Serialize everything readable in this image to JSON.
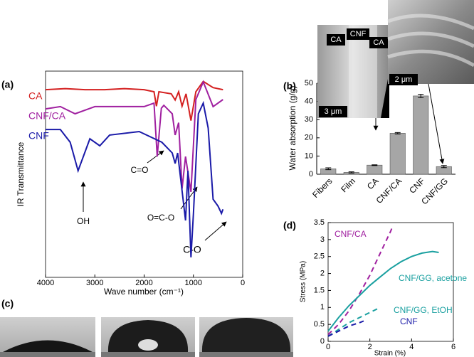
{
  "chart_data": [
    {
      "type": "line",
      "panel_label": "(a)",
      "xlabel": "Wave number (cm⁻¹)",
      "ylabel": "IR Transmittance",
      "xlim": [
        4000,
        0
      ],
      "xticks": [
        4000,
        3000,
        2000,
        1000,
        0
      ],
      "ylim": [
        0,
        100
      ],
      "series": [
        {
          "name": "CA",
          "color": "#d42020",
          "x": [
            4000,
            3600,
            3200,
            2800,
            2400,
            2000,
            1800,
            1750,
            1700,
            1450,
            1370,
            1300,
            1230,
            1150,
            1050,
            950,
            800,
            600,
            400
          ],
          "values": [
            91,
            91.5,
            91,
            91,
            91.5,
            91,
            90,
            83,
            90,
            89,
            86,
            90,
            83,
            89,
            76,
            90,
            95,
            92,
            91
          ]
        },
        {
          "name": "CNF/CA",
          "color": "#a020a0",
          "x": [
            4000,
            3700,
            3400,
            3000,
            2500,
            2000,
            1800,
            1735,
            1650,
            1600,
            1430,
            1370,
            1300,
            1230,
            1160,
            1050,
            950,
            800,
            600,
            400
          ],
          "values": [
            81.7,
            82.8,
            79.3,
            82.8,
            82.8,
            82.8,
            84.5,
            58.6,
            82,
            83.4,
            79.3,
            69,
            75,
            43,
            58.6,
            41.4,
            86.2,
            94.8,
            82.8,
            86.2
          ]
        },
        {
          "name": "CNF",
          "color": "#1a1aa8",
          "x": [
            4000,
            3700,
            3500,
            3340,
            3100,
            2900,
            2700,
            2100,
            1640,
            1430,
            1370,
            1320,
            1160,
            1110,
            1050,
            1000,
            900,
            800,
            700,
            600,
            500,
            430,
            400
          ],
          "values": [
            71.7,
            71.7,
            65.5,
            51.7,
            67.2,
            63.8,
            69,
            70.7,
            65.5,
            60.3,
            55.2,
            60.3,
            27.6,
            51.7,
            9.7,
            31,
            79.3,
            84.5,
            72.4,
            37.9,
            34.5,
            31,
            33
          ]
        }
      ],
      "annotations": [
        "OH",
        "C=O",
        "O=C-O",
        "C-O"
      ]
    },
    {
      "type": "bar",
      "panel_label": "(b)",
      "ylabel": "Water absorption (g/g)",
      "categories": [
        "Fibers",
        "Film",
        "CA",
        "CNF/CA",
        "CNF",
        "CNF/GG"
      ],
      "values": [
        3,
        1,
        5,
        22.5,
        43,
        4.2
      ],
      "errors": [
        0.5,
        0.3,
        0.2,
        0.4,
        0.9,
        0.6
      ],
      "color": "#a6a6a6",
      "ylim": [
        0,
        50
      ],
      "yticks": [
        0,
        10,
        20,
        30,
        40,
        50
      ],
      "inset_labels": [
        "CA",
        "CNF",
        "CA",
        "3 μm",
        "2 μm"
      ]
    },
    {
      "type": "line",
      "panel_label": "(d)",
      "xlabel": "Strain (%)",
      "ylabel": "Stress (MPa)",
      "xlim": [
        0,
        6
      ],
      "xticks": [
        0,
        2,
        4,
        6
      ],
      "ylim": [
        0,
        3.5
      ],
      "yticks": [
        0,
        0.5,
        1,
        1.5,
        2,
        2.5,
        3,
        3.5
      ],
      "series": [
        {
          "name": "CNF/CA",
          "color": "#a020a0",
          "dash": true,
          "x": [
            0,
            0.5,
            1,
            1.5,
            2,
            2.5,
            3,
            3.1
          ],
          "values": [
            0.2,
            0.5,
            0.9,
            1.4,
            1.95,
            2.6,
            3.25,
            3.4
          ]
        },
        {
          "name": "CNF/GG, acetone",
          "color": "#1aa0a0",
          "dash": false,
          "x": [
            0,
            0.5,
            1,
            1.5,
            2,
            2.5,
            3,
            3.5,
            4,
            4.5,
            5,
            5.3
          ],
          "values": [
            0.3,
            0.7,
            1.05,
            1.35,
            1.65,
            1.9,
            2.15,
            2.35,
            2.5,
            2.6,
            2.65,
            2.62
          ]
        },
        {
          "name": "CNF/GG, EtOH",
          "color": "#1aa0a0",
          "dash": true,
          "x": [
            0,
            0.5,
            1,
            1.5,
            2,
            2.5
          ],
          "values": [
            0.15,
            0.35,
            0.55,
            0.7,
            0.85,
            1.0
          ]
        },
        {
          "name": "CNF",
          "color": "#1a1aa8",
          "dash": true,
          "x": [
            0,
            0.5,
            1,
            1.5,
            1.7
          ],
          "values": [
            0.15,
            0.3,
            0.45,
            0.55,
            0.6
          ]
        }
      ]
    }
  ],
  "images": {
    "panel_label": "(c)"
  }
}
